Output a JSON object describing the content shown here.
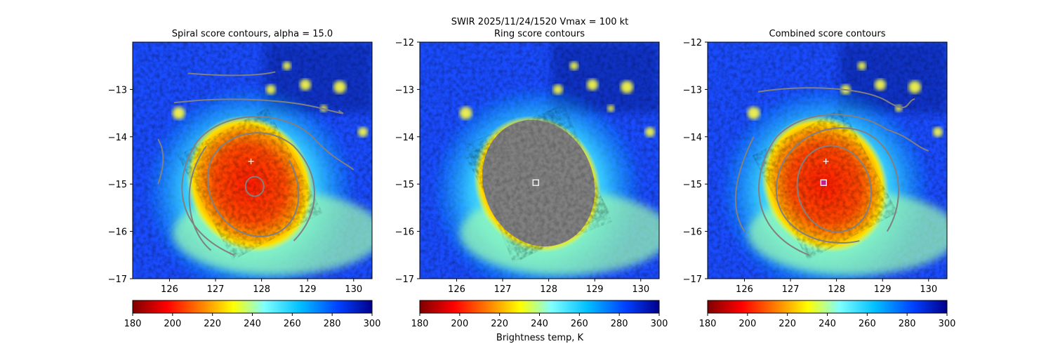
{
  "suptitle": "SWIR  2025/11/24/1520    Vmax = 100 kt",
  "colorbar_label": "Brightness temp, K",
  "colormap": [
    "#800000",
    "#ff0000",
    "#ff8c00",
    "#ffff00",
    "#7fffff",
    "#00bfff",
    "#0040ff",
    "#00008b"
  ],
  "contour_color": "#808080",
  "colorbar_range": [
    180,
    300
  ],
  "colorbar_ticks": [
    "180",
    "200",
    "220",
    "240",
    "260",
    "280",
    "300"
  ],
  "chart_data": [
    {
      "type": "heatmap",
      "title": "Spiral score contours, alpha = 15.0",
      "xlim": [
        125.2,
        130.4
      ],
      "ylim": [
        -17,
        -12
      ],
      "xticks": [
        "126",
        "127",
        "128",
        "129",
        "130"
      ],
      "yticks": [
        "−17",
        "−16",
        "−15",
        "−14",
        "−13"
      ],
      "marker": "plus",
      "marker_pos": [
        127.77,
        -14.52
      ],
      "overlay": "spiral"
    },
    {
      "type": "heatmap",
      "title": "Ring score contours",
      "xlim": [
        125.2,
        130.4
      ],
      "ylim": [
        -17,
        -12
      ],
      "xticks": [
        "126",
        "127",
        "128",
        "129",
        "130"
      ],
      "yticks": [
        "−17",
        "−16",
        "−15",
        "−14",
        "−13",
        "−12"
      ],
      "marker": "square",
      "marker_pos": [
        127.72,
        -14.97
      ],
      "overlay": "ring"
    },
    {
      "type": "heatmap",
      "title": "Combined score contours",
      "xlim": [
        125.2,
        130.4
      ],
      "ylim": [
        -17,
        -12
      ],
      "xticks": [
        "126",
        "127",
        "128",
        "129",
        "130"
      ],
      "yticks": [
        "−17",
        "−16",
        "−15",
        "−14",
        "−13",
        "−12"
      ],
      "marker": "plus-square",
      "marker_pos": [
        127.77,
        -14.52
      ],
      "marker2_pos": [
        127.72,
        -14.97
      ],
      "overlay": "combined"
    }
  ]
}
